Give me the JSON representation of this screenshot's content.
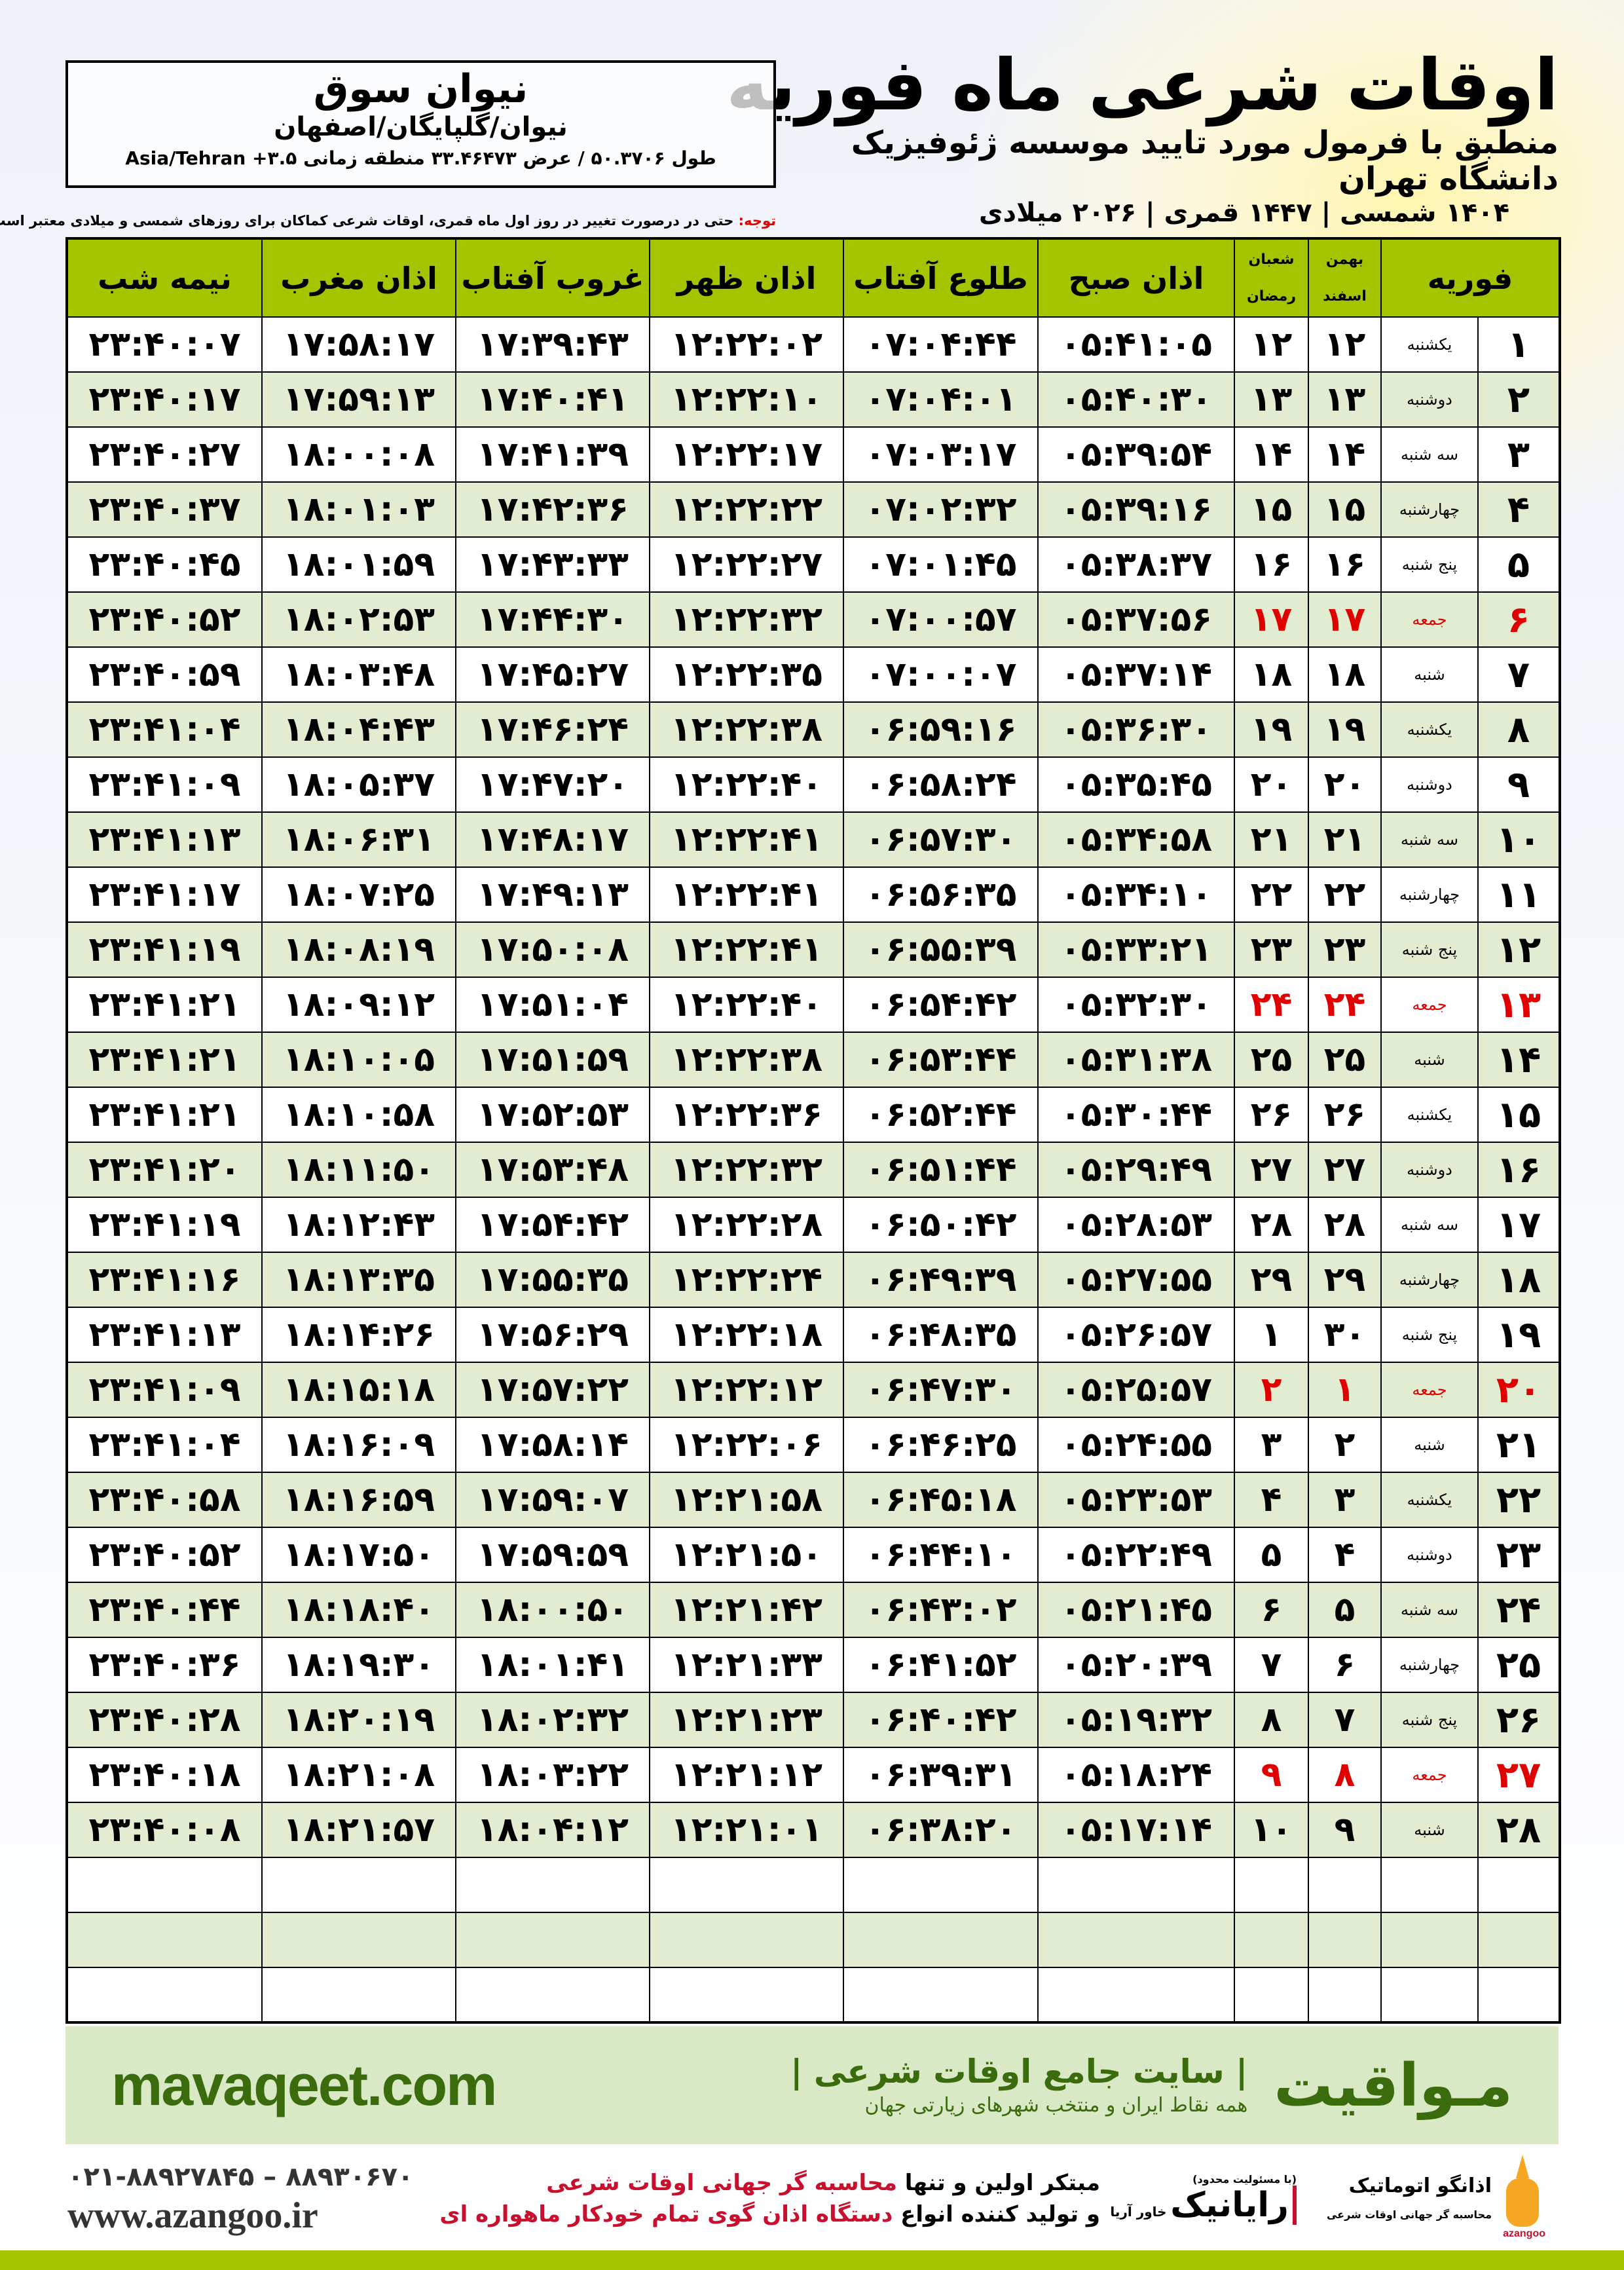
{
  "header": {
    "title": "اوقات شرعی ماه فوریه",
    "subtitle": "منطبق با فرمول مورد تایید موسسه ژئوفیزیک دانشگاه تهران",
    "years": "۱۴۰۴ شمسی | ۱۴۴۷ قمری | ۲۰۲۶ میلادی"
  },
  "location": {
    "city": "نیوان سوق",
    "path": "نیوان/گلپایگان/اصفهان",
    "geo": "طول ۵۰.۳۷۰۶ / عرض ۳۳.۴۶۴۷۳ منطقه زمانی ۳.۵+ Asia/Tehran"
  },
  "note": {
    "label": "توجه:",
    "text": " حتی در درصورت تغییر در روز اول ماه قمری، اوقات شرعی کماکان برای روزهای شمسی و میلادی معتبر است."
  },
  "columns": {
    "month": "فوریه",
    "shamsi_top": "بهمن",
    "shamsi_bottom": "اسفند",
    "qamari_top": "شعبان",
    "qamari_bottom": "رمضان",
    "fajr": "اذان صبح",
    "sunrise": "طلوع آفتاب",
    "dhuhr": "اذان ظهر",
    "sunset": "غروب آفتاب",
    "maghrib": "اذان مغرب",
    "midnight": "نیمه شب"
  },
  "colors": {
    "header_green": "#a4c400",
    "row_green": "#e2ecd0",
    "friday_red": "#e00000",
    "brand_green": "#3a6b0c"
  },
  "rows": [
    [
      "۱",
      "یکشنبه",
      "۱۲",
      "۱۲",
      "۰۵:۴۱:۰۵",
      "۰۷:۰۴:۴۴",
      "۱۲:۲۲:۰۲",
      "۱۷:۳۹:۴۳",
      "۱۷:۵۸:۱۷",
      "۲۳:۴۰:۰۷"
    ],
    [
      "۲",
      "دوشنبه",
      "۱۳",
      "۱۳",
      "۰۵:۴۰:۳۰",
      "۰۷:۰۴:۰۱",
      "۱۲:۲۲:۱۰",
      "۱۷:۴۰:۴۱",
      "۱۷:۵۹:۱۳",
      "۲۳:۴۰:۱۷"
    ],
    [
      "۳",
      "سه شنبه",
      "۱۴",
      "۱۴",
      "۰۵:۳۹:۵۴",
      "۰۷:۰۳:۱۷",
      "۱۲:۲۲:۱۷",
      "۱۷:۴۱:۳۹",
      "۱۸:۰۰:۰۸",
      "۲۳:۴۰:۲۷"
    ],
    [
      "۴",
      "چهارشنبه",
      "۱۵",
      "۱۵",
      "۰۵:۳۹:۱۶",
      "۰۷:۰۲:۳۲",
      "۱۲:۲۲:۲۲",
      "۱۷:۴۲:۳۶",
      "۱۸:۰۱:۰۳",
      "۲۳:۴۰:۳۷"
    ],
    [
      "۵",
      "پنج شنبه",
      "۱۶",
      "۱۶",
      "۰۵:۳۸:۳۷",
      "۰۷:۰۱:۴۵",
      "۱۲:۲۲:۲۷",
      "۱۷:۴۳:۳۳",
      "۱۸:۰۱:۵۹",
      "۲۳:۴۰:۴۵"
    ],
    [
      "۶",
      "جمعه",
      "۱۷",
      "۱۷",
      "۰۵:۳۷:۵۶",
      "۰۷:۰۰:۵۷",
      "۱۲:۲۲:۳۲",
      "۱۷:۴۴:۳۰",
      "۱۸:۰۲:۵۳",
      "۲۳:۴۰:۵۲"
    ],
    [
      "۷",
      "شنبه",
      "۱۸",
      "۱۸",
      "۰۵:۳۷:۱۴",
      "۰۷:۰۰:۰۷",
      "۱۲:۲۲:۳۵",
      "۱۷:۴۵:۲۷",
      "۱۸:۰۳:۴۸",
      "۲۳:۴۰:۵۹"
    ],
    [
      "۸",
      "یکشنبه",
      "۱۹",
      "۱۹",
      "۰۵:۳۶:۳۰",
      "۰۶:۵۹:۱۶",
      "۱۲:۲۲:۳۸",
      "۱۷:۴۶:۲۴",
      "۱۸:۰۴:۴۳",
      "۲۳:۴۱:۰۴"
    ],
    [
      "۹",
      "دوشنبه",
      "۲۰",
      "۲۰",
      "۰۵:۳۵:۴۵",
      "۰۶:۵۸:۲۴",
      "۱۲:۲۲:۴۰",
      "۱۷:۴۷:۲۰",
      "۱۸:۰۵:۳۷",
      "۲۳:۴۱:۰۹"
    ],
    [
      "۱۰",
      "سه شنبه",
      "۲۱",
      "۲۱",
      "۰۵:۳۴:۵۸",
      "۰۶:۵۷:۳۰",
      "۱۲:۲۲:۴۱",
      "۱۷:۴۸:۱۷",
      "۱۸:۰۶:۳۱",
      "۲۳:۴۱:۱۳"
    ],
    [
      "۱۱",
      "چهارشنبه",
      "۲۲",
      "۲۲",
      "۰۵:۳۴:۱۰",
      "۰۶:۵۶:۳۵",
      "۱۲:۲۲:۴۱",
      "۱۷:۴۹:۱۳",
      "۱۸:۰۷:۲۵",
      "۲۳:۴۱:۱۷"
    ],
    [
      "۱۲",
      "پنج شنبه",
      "۲۳",
      "۲۳",
      "۰۵:۳۳:۲۱",
      "۰۶:۵۵:۳۹",
      "۱۲:۲۲:۴۱",
      "۱۷:۵۰:۰۸",
      "۱۸:۰۸:۱۹",
      "۲۳:۴۱:۱۹"
    ],
    [
      "۱۳",
      "جمعه",
      "۲۴",
      "۲۴",
      "۰۵:۳۲:۳۰",
      "۰۶:۵۴:۴۲",
      "۱۲:۲۲:۴۰",
      "۱۷:۵۱:۰۴",
      "۱۸:۰۹:۱۲",
      "۲۳:۴۱:۲۱"
    ],
    [
      "۱۴",
      "شنبه",
      "۲۵",
      "۲۵",
      "۰۵:۳۱:۳۸",
      "۰۶:۵۳:۴۴",
      "۱۲:۲۲:۳۸",
      "۱۷:۵۱:۵۹",
      "۱۸:۱۰:۰۵",
      "۲۳:۴۱:۲۱"
    ],
    [
      "۱۵",
      "یکشنبه",
      "۲۶",
      "۲۶",
      "۰۵:۳۰:۴۴",
      "۰۶:۵۲:۴۴",
      "۱۲:۲۲:۳۶",
      "۱۷:۵۲:۵۳",
      "۱۸:۱۰:۵۸",
      "۲۳:۴۱:۲۱"
    ],
    [
      "۱۶",
      "دوشنبه",
      "۲۷",
      "۲۷",
      "۰۵:۲۹:۴۹",
      "۰۶:۵۱:۴۴",
      "۱۲:۲۲:۳۲",
      "۱۷:۵۳:۴۸",
      "۱۸:۱۱:۵۰",
      "۲۳:۴۱:۲۰"
    ],
    [
      "۱۷",
      "سه شنبه",
      "۲۸",
      "۲۸",
      "۰۵:۲۸:۵۳",
      "۰۶:۵۰:۴۲",
      "۱۲:۲۲:۲۸",
      "۱۷:۵۴:۴۲",
      "۱۸:۱۲:۴۳",
      "۲۳:۴۱:۱۹"
    ],
    [
      "۱۸",
      "چهارشنبه",
      "۲۹",
      "۲۹",
      "۰۵:۲۷:۵۵",
      "۰۶:۴۹:۳۹",
      "۱۲:۲۲:۲۴",
      "۱۷:۵۵:۳۵",
      "۱۸:۱۳:۳۵",
      "۲۳:۴۱:۱۶"
    ],
    [
      "۱۹",
      "پنج شنبه",
      "۳۰",
      "۱",
      "۰۵:۲۶:۵۷",
      "۰۶:۴۸:۳۵",
      "۱۲:۲۲:۱۸",
      "۱۷:۵۶:۲۹",
      "۱۸:۱۴:۲۶",
      "۲۳:۴۱:۱۳"
    ],
    [
      "۲۰",
      "جمعه",
      "۱",
      "۲",
      "۰۵:۲۵:۵۷",
      "۰۶:۴۷:۳۰",
      "۱۲:۲۲:۱۲",
      "۱۷:۵۷:۲۲",
      "۱۸:۱۵:۱۸",
      "۲۳:۴۱:۰۹"
    ],
    [
      "۲۱",
      "شنبه",
      "۲",
      "۳",
      "۰۵:۲۴:۵۵",
      "۰۶:۴۶:۲۵",
      "۱۲:۲۲:۰۶",
      "۱۷:۵۸:۱۴",
      "۱۸:۱۶:۰۹",
      "۲۳:۴۱:۰۴"
    ],
    [
      "۲۲",
      "یکشنبه",
      "۳",
      "۴",
      "۰۵:۲۳:۵۳",
      "۰۶:۴۵:۱۸",
      "۱۲:۲۱:۵۸",
      "۱۷:۵۹:۰۷",
      "۱۸:۱۶:۵۹",
      "۲۳:۴۰:۵۸"
    ],
    [
      "۲۳",
      "دوشنبه",
      "۴",
      "۵",
      "۰۵:۲۲:۴۹",
      "۰۶:۴۴:۱۰",
      "۱۲:۲۱:۵۰",
      "۱۷:۵۹:۵۹",
      "۱۸:۱۷:۵۰",
      "۲۳:۴۰:۵۲"
    ],
    [
      "۲۴",
      "سه شنبه",
      "۵",
      "۶",
      "۰۵:۲۱:۴۵",
      "۰۶:۴۳:۰۲",
      "۱۲:۲۱:۴۲",
      "۱۸:۰۰:۵۰",
      "۱۸:۱۸:۴۰",
      "۲۳:۴۰:۴۴"
    ],
    [
      "۲۵",
      "چهارشنبه",
      "۶",
      "۷",
      "۰۵:۲۰:۳۹",
      "۰۶:۴۱:۵۲",
      "۱۲:۲۱:۳۳",
      "۱۸:۰۱:۴۱",
      "۱۸:۱۹:۳۰",
      "۲۳:۴۰:۳۶"
    ],
    [
      "۲۶",
      "پنج شنبه",
      "۷",
      "۸",
      "۰۵:۱۹:۳۲",
      "۰۶:۴۰:۴۲",
      "۱۲:۲۱:۲۳",
      "۱۸:۰۲:۳۲",
      "۱۸:۲۰:۱۹",
      "۲۳:۴۰:۲۸"
    ],
    [
      "۲۷",
      "جمعه",
      "۸",
      "۹",
      "۰۵:۱۸:۲۴",
      "۰۶:۳۹:۳۱",
      "۱۲:۲۱:۱۲",
      "۱۸:۰۳:۲۲",
      "۱۸:۲۱:۰۸",
      "۲۳:۴۰:۱۸"
    ],
    [
      "۲۸",
      "شنبه",
      "۹",
      "۱۰",
      "۰۵:۱۷:۱۴",
      "۰۶:۳۸:۲۰",
      "۱۲:۲۱:۰۱",
      "۱۸:۰۴:۱۲",
      "۱۸:۲۱:۵۷",
      "۲۳:۴۰:۰۸"
    ]
  ],
  "friday_label": "جمعه",
  "footer": {
    "brand": "مـواقیت",
    "slogan": "| سایت جامع اوقات شرعی |",
    "slogan2": "همه نقاط ایران و منتخب شهرهای زیارتی جهان",
    "site": "mavaqeet.com",
    "promo1_a": "مبتکر اولین و تنها ",
    "promo1_b": "محاسبه گر جهانی اوقات شرعی",
    "promo2_a": "و تولید کننده انواع ",
    "promo2_b": "دستگاه اذان گوی تمام خودکار ماهواره ای",
    "phone": "۰۲۱-۸۸۹۲۷۸۴۵ – ۸۸۹۳۰۶۷۰",
    "web": "www.azangoo.ir",
    "logo_raya": "رایانیک",
    "logo_raya_sub": "خاور آریا",
    "logo_raya_tag": "(با مسئولیت محدود)",
    "logo_azangoo": "اذانگو اتوماتیک",
    "logo_azangoo_sub": "محاسبه گر جهانی اوقات شرعی",
    "logo_azangoo_latin": "azangoo"
  }
}
